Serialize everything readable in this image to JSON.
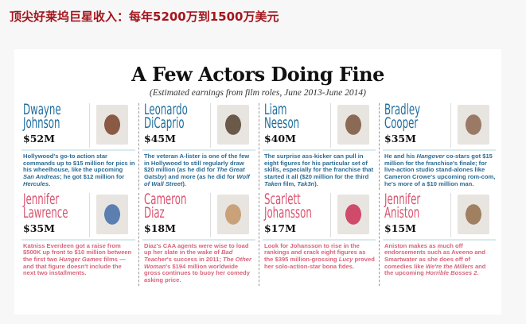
{
  "header": {
    "title": "顶尖好莱坞巨星收入：每年5200万到1500万美元"
  },
  "article": {
    "title": "A Few Actors Doing Fine",
    "subtitle": "(Estimated earnings from film roles, June 2013-June 2014)",
    "colors": {
      "men": "#1f6e9e",
      "women": "#d9536e"
    },
    "actors": [
      {
        "first": "Dwayne",
        "last": "Johnson",
        "earnings": "$52M",
        "photo_color": "#8a5a45",
        "desc": [
          {
            "t": "Hollywood's go-to action star commands up to $15 million for pics in his wheelhouse, like the upcoming "
          },
          {
            "t": "San Andreas",
            "i": true
          },
          {
            "t": "; he got $12 million for "
          },
          {
            "t": "Hercules",
            "i": true
          },
          {
            "t": "."
          }
        ]
      },
      {
        "first": "Leonardo",
        "last": "DiCaprio",
        "earnings": "$45M",
        "photo_color": "#6b5a4a",
        "desc": [
          {
            "t": "The veteran A-lister is one of the few in Hollywood to still regularly draw $20 million (as he did for "
          },
          {
            "t": "The Great Gatsby",
            "i": true
          },
          {
            "t": ") and more (as he did for "
          },
          {
            "t": "Wolf of Wall Street",
            "i": true
          },
          {
            "t": ")."
          }
        ]
      },
      {
        "first": "Liam",
        "last": "Neeson",
        "earnings": "$40M",
        "photo_color": "#8a6a55",
        "desc": [
          {
            "t": "The surprise ass-kicker can pull in eight figures for his particular set of skills, especially for the franchise that started it all ($20 million for the third "
          },
          {
            "t": "Taken",
            "i": true
          },
          {
            "t": " film, "
          },
          {
            "t": "Tak3n",
            "i": true
          },
          {
            "t": ")."
          }
        ]
      },
      {
        "first": "Bradley",
        "last": "Cooper",
        "earnings": "$35M",
        "photo_color": "#9a7a65",
        "desc": [
          {
            "t": "He and his "
          },
          {
            "t": "Hangover",
            "i": true
          },
          {
            "t": " co-stars got $15 million for the franchise's finale; for live-action studio stand-alones like Cameron Crowe's upcoming rom-com, he's more of a $10 million man."
          }
        ]
      },
      {
        "first": "Jennifer",
        "last": "Lawrence",
        "earnings": "$35M",
        "photo_color": "#5a7fb0",
        "desc": [
          {
            "t": "Katniss Everdeen got a raise from $500K up front to $10 million between the first two "
          },
          {
            "t": "Hunger Games",
            "i": true
          },
          {
            "t": " films — and that figure doesn't include the next two installments."
          }
        ]
      },
      {
        "first": "Cameron",
        "last": "Diaz",
        "earnings": "$18M",
        "photo_color": "#c9a27a",
        "desc": [
          {
            "t": "Diaz's CAA agents were wise to load up her slate in the wake of "
          },
          {
            "t": "Bad Teacher",
            "i": true
          },
          {
            "t": "'s success in 2011; "
          },
          {
            "t": "The Other Woman",
            "i": true
          },
          {
            "t": "'s $194 million worldwide gross continues to buoy her comedy asking price."
          }
        ]
      },
      {
        "first": "Scarlett",
        "last": "Johansson",
        "earnings": "$17M",
        "photo_color": "#d04a6a",
        "desc": [
          {
            "t": "Look for Johansson to rise in the rankings and crack eight figures as the $395 million-grossing "
          },
          {
            "t": "Lucy",
            "i": true
          },
          {
            "t": " proved her solo-action-star bona fides."
          }
        ]
      },
      {
        "first": "Jennifer",
        "last": "Aniston",
        "earnings": "$15M",
        "photo_color": "#a08060",
        "desc": [
          {
            "t": "Aniston makes as much off endorsements such as Aveeno and Smartwater as she does off of comedies like "
          },
          {
            "t": "We're the Millers",
            "i": true
          },
          {
            "t": " and the upcoming "
          },
          {
            "t": "Horrible Bosses 2",
            "i": true
          },
          {
            "t": "."
          }
        ]
      }
    ]
  }
}
